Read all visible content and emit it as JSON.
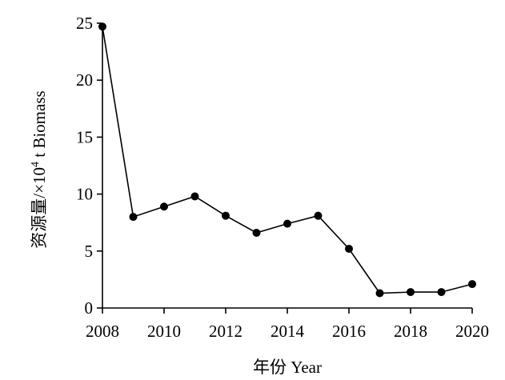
{
  "chart_data": {
    "type": "line",
    "title": "",
    "xlabel": "年份 Year",
    "ylabel_main": "资源量/×10",
    "ylabel_sup": "4",
    "ylabel_tail": " t Biomass",
    "xlim": [
      2008,
      2020
    ],
    "ylim": [
      0,
      25
    ],
    "xticks": [
      2008,
      2010,
      2012,
      2014,
      2016,
      2018,
      2020
    ],
    "yticks": [
      0,
      5,
      10,
      15,
      20,
      25
    ],
    "grid": false,
    "legend": "none",
    "series": [
      {
        "x": [
          2008,
          2009,
          2010,
          2011,
          2012,
          2013,
          2014,
          2015,
          2016,
          2017,
          2018,
          2019,
          2020
        ],
        "y": [
          24.7,
          8.0,
          8.9,
          9.8,
          8.1,
          6.6,
          7.4,
          8.1,
          5.2,
          1.3,
          1.4,
          1.4,
          2.1
        ]
      }
    ],
    "line_color": "#000000",
    "marker_color": "#000000"
  }
}
